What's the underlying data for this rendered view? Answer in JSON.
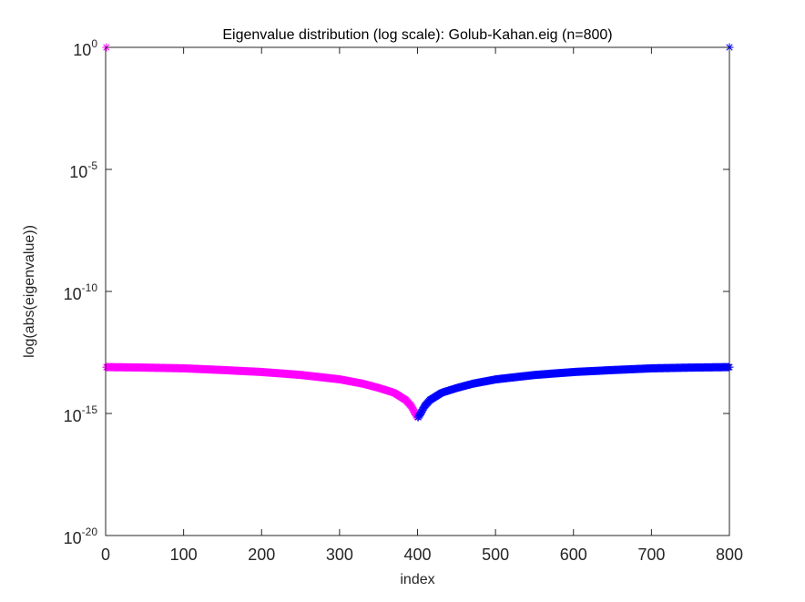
{
  "chart_data": {
    "type": "scatter",
    "title": "Eigenvalue distribution (log scale): Golub-Kahan.eig (n=800)",
    "xlabel": "index",
    "ylabel": "log(abs(eigenvalue))",
    "xlim": [
      0,
      800
    ],
    "ylim_log10": [
      -20,
      0
    ],
    "y_scale": "log",
    "x_ticks": [
      0,
      100,
      200,
      300,
      400,
      500,
      600,
      700,
      800
    ],
    "y_ticks": [
      {
        "base": "10",
        "exp": "0",
        "log10": 0
      },
      {
        "base": "10",
        "exp": "-5",
        "log10": -5
      },
      {
        "base": "10",
        "exp": "-10",
        "log10": -10
      },
      {
        "base": "10",
        "exp": "-15",
        "log10": -15
      },
      {
        "base": "10",
        "exp": "-20",
        "log10": -20
      }
    ],
    "grid": false,
    "marker": "asterisk",
    "series": [
      {
        "color": "#ff00ff",
        "index_range": [
          1,
          400
        ],
        "bulk_log10_profile": [
          [
            1,
            -13.1
          ],
          [
            50,
            -13.12
          ],
          [
            100,
            -13.15
          ],
          [
            150,
            -13.22
          ],
          [
            200,
            -13.3
          ],
          [
            250,
            -13.42
          ],
          [
            300,
            -13.6
          ],
          [
            330,
            -13.78
          ],
          [
            350,
            -13.95
          ],
          [
            370,
            -14.15
          ],
          [
            385,
            -14.45
          ],
          [
            392,
            -14.7
          ],
          [
            397,
            -15.0
          ],
          [
            400,
            -15.15
          ]
        ],
        "outliers": [
          {
            "x": 1,
            "log10": 0
          }
        ]
      },
      {
        "color": "#0000ff",
        "index_range": [
          401,
          800
        ],
        "bulk_log10_profile": [
          [
            401,
            -15.15
          ],
          [
            404,
            -15.0
          ],
          [
            409,
            -14.7
          ],
          [
            416,
            -14.45
          ],
          [
            431,
            -14.15
          ],
          [
            451,
            -13.95
          ],
          [
            471,
            -13.78
          ],
          [
            501,
            -13.6
          ],
          [
            551,
            -13.42
          ],
          [
            601,
            -13.3
          ],
          [
            651,
            -13.22
          ],
          [
            701,
            -13.15
          ],
          [
            751,
            -13.12
          ],
          [
            800,
            -13.1
          ]
        ],
        "outliers": [
          {
            "x": 800,
            "log10": 0
          }
        ]
      }
    ]
  }
}
